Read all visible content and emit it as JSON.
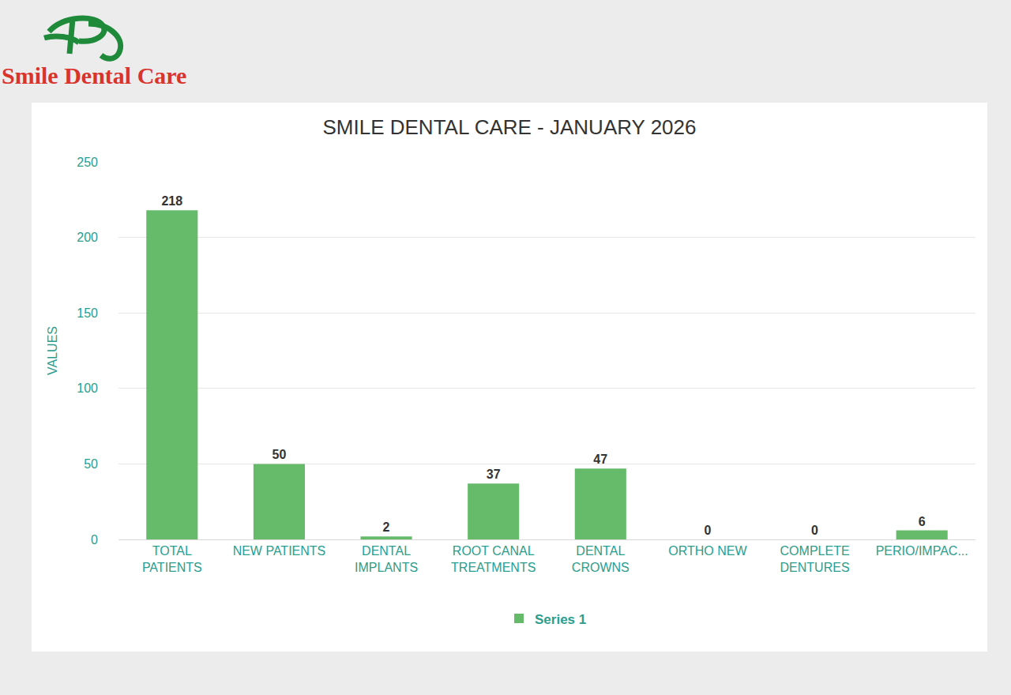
{
  "logo_text": "Smile Dental Care",
  "chart_data": {
    "type": "bar",
    "title": "SMILE DENTAL CARE - JANUARY 2026",
    "y_label": "VALUES",
    "categories": [
      "TOTAL PATIENTS",
      "NEW PATIENTS",
      "DENTAL IMPLANTS",
      "ROOT CANAL TREATMENTS",
      "DENTAL CROWNS",
      "ORTHO NEW",
      "COMPLETE DENTURES",
      "PERIO/IMPAC..."
    ],
    "series": [
      {
        "name": "Series 1",
        "color": "#66bb6a",
        "values": [
          218,
          50,
          2,
          37,
          47,
          0,
          0,
          6
        ]
      }
    ],
    "ylim": [
      0,
      250
    ],
    "yticks": [
      0,
      50,
      100,
      150,
      200,
      250
    ],
    "grid": true,
    "legend": "bottom",
    "data_labels": true
  }
}
